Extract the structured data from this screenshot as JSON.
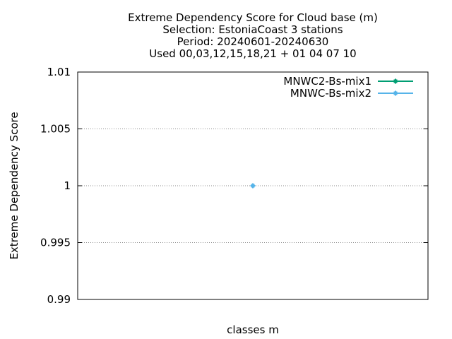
{
  "chart_data": {
    "type": "line",
    "title_lines": [
      "Extreme Dependency Score  for Cloud base (m)",
      "Selection: EstoniaCoast      3 stations",
      "Period: 20240601-20240630",
      "Used 00,03,12,15,18,21 + 01 04 07 10"
    ],
    "xlabel": "classes m",
    "ylabel": "Extreme Dependency Score",
    "ylim": [
      0.99,
      1.01
    ],
    "yticks": [
      {
        "value": 0.99,
        "label": "0.99"
      },
      {
        "value": 0.995,
        "label": "0.995"
      },
      {
        "value": 1.0,
        "label": "1"
      },
      {
        "value": 1.005,
        "label": "1.005"
      },
      {
        "value": 1.01,
        "label": "1.01"
      }
    ],
    "xlim": [
      0,
      1
    ],
    "grid": true,
    "legend_position": "top-right",
    "series": [
      {
        "name": "MNWC2-Bs-mix1",
        "color": "#009e73",
        "points": [
          {
            "x": 0.5,
            "y": 1.0
          }
        ]
      },
      {
        "name": "MNWC-Bs-mix2",
        "color": "#56b4e9",
        "points": [
          {
            "x": 0.5,
            "y": 1.0
          }
        ]
      }
    ]
  }
}
